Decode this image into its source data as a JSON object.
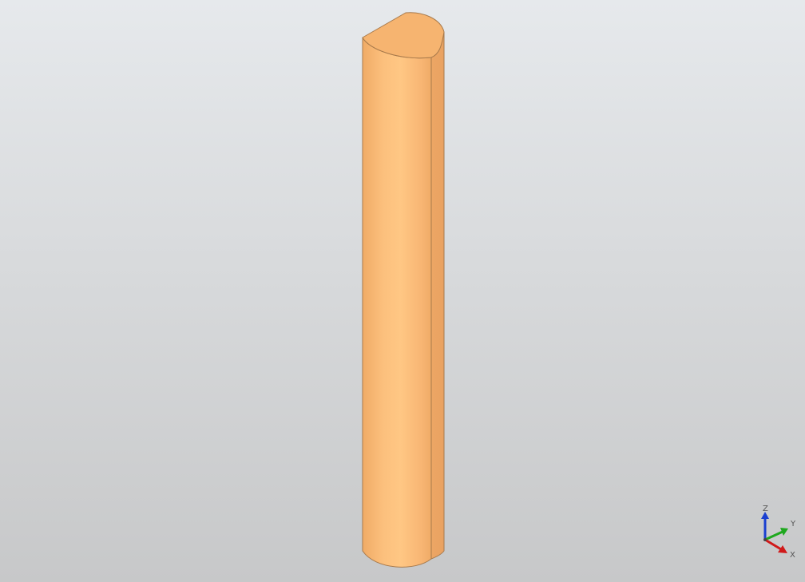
{
  "scene": {
    "background_top": "#e6e9ec",
    "background_bottom": "#c7c8c9",
    "model": {
      "name": "half-cylinder-solid",
      "face_color": "#fcbd7a",
      "side_color": "#f2ad68",
      "edge_color": "#a87a4c"
    }
  },
  "triad": {
    "z_label": "Z",
    "y_label": "Y",
    "x_label": "X",
    "z_color": "#1a3fd0",
    "y_color": "#1ea81e",
    "x_color": "#d01a1a"
  }
}
